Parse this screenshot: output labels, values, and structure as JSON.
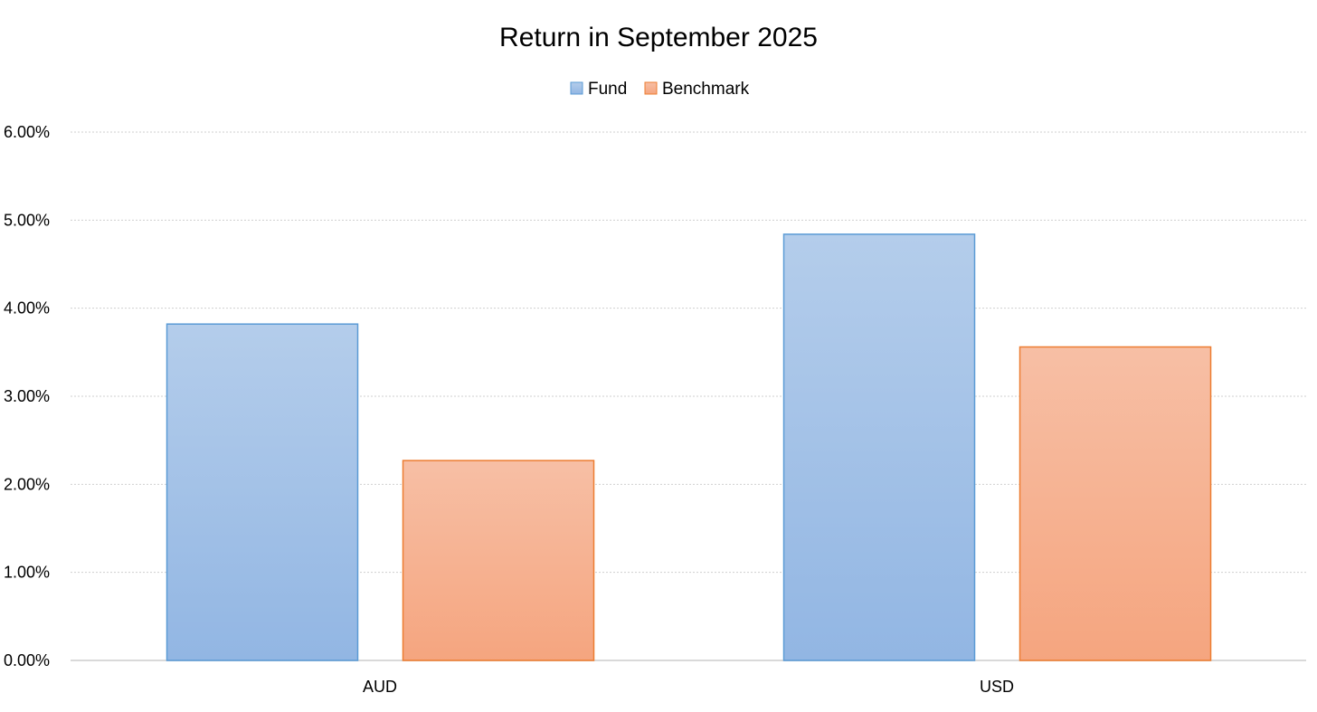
{
  "chart_data": {
    "type": "bar",
    "title": "Return in September 2025",
    "xlabel": "",
    "ylabel": "",
    "categories": [
      "AUD",
      "USD"
    ],
    "series": [
      {
        "name": "Fund",
        "values": [
          3.82,
          4.84
        ],
        "color": "#9dbde6",
        "edge": "#5b9bd5"
      },
      {
        "name": "Benchmark",
        "values": [
          2.27,
          3.56
        ],
        "color": "#f5b394",
        "edge": "#ed7d31"
      }
    ],
    "ylim": [
      0,
      6
    ],
    "yticks": [
      0,
      1,
      2,
      3,
      4,
      5,
      6
    ],
    "ytick_labels": [
      "0.00%",
      "1.00%",
      "2.00%",
      "3.00%",
      "4.00%",
      "5.00%",
      "6.00%"
    ],
    "grid": true,
    "legend_position": "top-center"
  }
}
